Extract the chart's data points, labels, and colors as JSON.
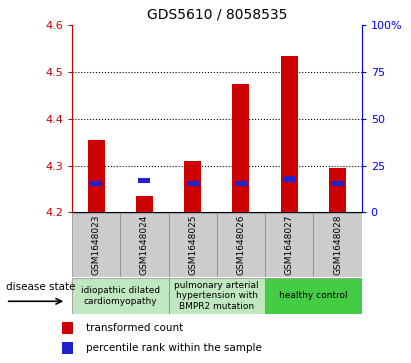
{
  "title": "GDS5610 / 8058535",
  "samples": [
    "GSM1648023",
    "GSM1648024",
    "GSM1648025",
    "GSM1648026",
    "GSM1648027",
    "GSM1648028"
  ],
  "red_values": [
    4.355,
    4.235,
    4.31,
    4.475,
    4.535,
    4.295
  ],
  "blue_percentiles": [
    15.5,
    17.0,
    15.5,
    15.5,
    18.0,
    15.5
  ],
  "ylim_left": [
    4.2,
    4.6
  ],
  "ylim_right": [
    0,
    100
  ],
  "yticks_left": [
    4.2,
    4.3,
    4.4,
    4.5,
    4.6
  ],
  "yticks_right": [
    0,
    25,
    50,
    75,
    100
  ],
  "ytick_labels_right": [
    "0",
    "25",
    "50",
    "75",
    "100%"
  ],
  "bar_width": 0.35,
  "red_color": "#cc0000",
  "blue_color": "#2222cc",
  "group_colors": [
    "#c0e8c0",
    "#c0e8c0",
    "#44cc44"
  ],
  "group_labels": [
    "idiopathic dilated\ncardiomyopathy",
    "pulmonary arterial\nhypertension with\nBMPR2 mutation",
    "healthy control"
  ],
  "group_ranges": [
    [
      0,
      2
    ],
    [
      2,
      4
    ],
    [
      4,
      6
    ]
  ],
  "legend_red": "transformed count",
  "legend_blue": "percentile rank within the sample",
  "disease_state_label": "disease state",
  "sample_box_color": "#cccccc",
  "blue_bar_width": 0.25,
  "blue_bar_height": 0.012
}
